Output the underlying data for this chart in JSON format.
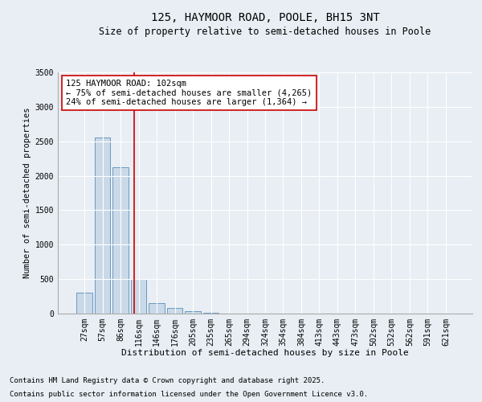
{
  "title": "125, HAYMOOR ROAD, POOLE, BH15 3NT",
  "subtitle": "Size of property relative to semi-detached houses in Poole",
  "xlabel": "Distribution of semi-detached houses by size in Poole",
  "ylabel": "Number of semi-detached properties",
  "categories": [
    "27sqm",
    "57sqm",
    "86sqm",
    "116sqm",
    "146sqm",
    "176sqm",
    "205sqm",
    "235sqm",
    "265sqm",
    "294sqm",
    "324sqm",
    "354sqm",
    "384sqm",
    "413sqm",
    "443sqm",
    "473sqm",
    "502sqm",
    "532sqm",
    "562sqm",
    "591sqm",
    "621sqm"
  ],
  "values": [
    300,
    2550,
    2120,
    500,
    155,
    80,
    30,
    15,
    5,
    2,
    1,
    0,
    0,
    0,
    0,
    0,
    0,
    0,
    0,
    0,
    0
  ],
  "bar_color": "#c9d9e8",
  "bar_edge_color": "#5b8db8",
  "vline_x": 2.75,
  "vline_color": "#cc0000",
  "annotation_line1": "125 HAYMOOR ROAD: 102sqm",
  "annotation_line2": "← 75% of semi-detached houses are smaller (4,265)",
  "annotation_line3": "24% of semi-detached houses are larger (1,364) →",
  "annotation_box_color": "#ffffff",
  "annotation_box_edge_color": "#cc0000",
  "ylim": [
    0,
    3500
  ],
  "yticks": [
    0,
    500,
    1000,
    1500,
    2000,
    2500,
    3000,
    3500
  ],
  "background_color": "#e8eef4",
  "plot_bg_color": "#e8eef4",
  "footer_line1": "Contains HM Land Registry data © Crown copyright and database right 2025.",
  "footer_line2": "Contains public sector information licensed under the Open Government Licence v3.0.",
  "title_fontsize": 10,
  "subtitle_fontsize": 8.5,
  "xlabel_fontsize": 8,
  "ylabel_fontsize": 7.5,
  "tick_fontsize": 7,
  "annotation_fontsize": 7.5,
  "footer_fontsize": 6.5
}
